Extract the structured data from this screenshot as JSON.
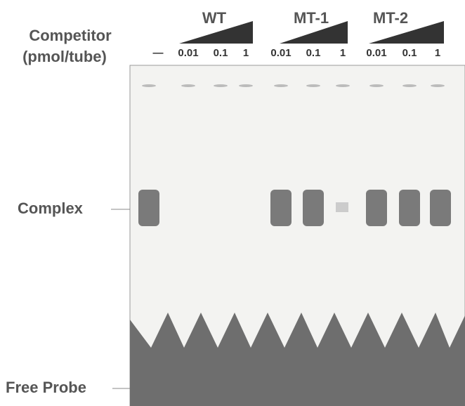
{
  "header": {
    "row_labels": [
      "Competitor",
      "(pmol/tube)"
    ],
    "control_lane": "—"
  },
  "groups": [
    {
      "label": "WT",
      "lanes": [
        "0.01",
        "0.1",
        "1"
      ]
    },
    {
      "label": "MT-1",
      "lanes": [
        "0.01",
        "0.1",
        "1"
      ]
    },
    {
      "label": "MT-2",
      "lanes": [
        "0.01",
        "0.1",
        "1"
      ]
    }
  ],
  "side_labels": [
    "Complex",
    "Free Probe"
  ]
}
